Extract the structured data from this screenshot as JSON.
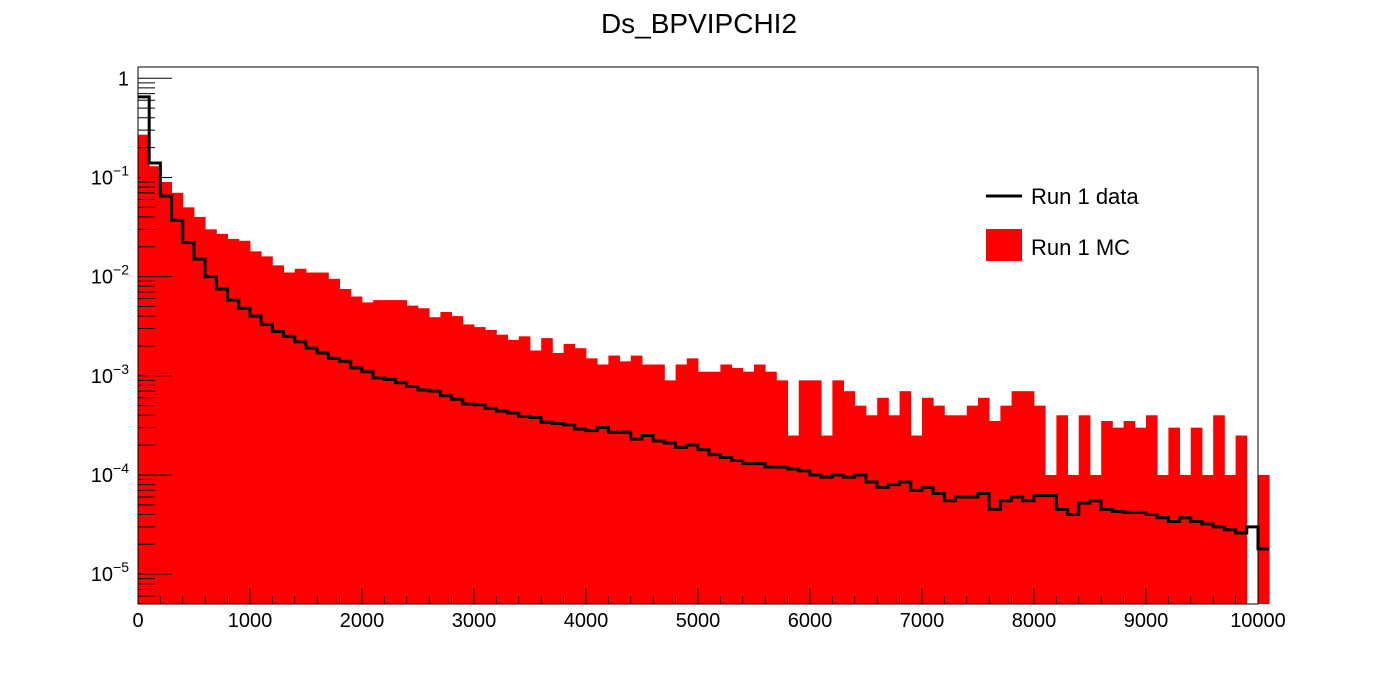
{
  "chart_data": {
    "type": "histogram",
    "title": "Ds_BPVIPCHI2",
    "xlabel": "",
    "ylabel": "",
    "x_range": [
      0,
      10000
    ],
    "bin_width": 100,
    "y_scale": "log",
    "y_range": [
      5e-06,
      1.3
    ],
    "x_ticks": [
      "0",
      "1000",
      "2000",
      "3000",
      "4000",
      "5000",
      "6000",
      "7000",
      "8000",
      "9000",
      "10000"
    ],
    "y_ticks": [
      {
        "base": "1",
        "exp": ""
      },
      {
        "base": "10",
        "exp": "−1"
      },
      {
        "base": "10",
        "exp": "−2"
      },
      {
        "base": "10",
        "exp": "−3"
      },
      {
        "base": "10",
        "exp": "−4"
      },
      {
        "base": "10",
        "exp": "−5"
      }
    ],
    "legend_position": "top-right",
    "series": [
      {
        "name": "Run 1 MC",
        "style": "filled",
        "color": "#ff0000",
        "values": [
          0.27,
          0.13,
          0.09,
          0.07,
          0.05,
          0.04,
          0.03,
          0.027,
          0.024,
          0.023,
          0.018,
          0.016,
          0.013,
          0.011,
          0.012,
          0.011,
          0.011,
          0.0095,
          0.0075,
          0.0063,
          0.0055,
          0.0058,
          0.0058,
          0.0058,
          0.0051,
          0.0048,
          0.0039,
          0.0044,
          0.004,
          0.0033,
          0.0031,
          0.0029,
          0.0026,
          0.0023,
          0.0025,
          0.0018,
          0.0024,
          0.0017,
          0.0021,
          0.0019,
          0.0015,
          0.0013,
          0.0016,
          0.0014,
          0.0016,
          0.0013,
          0.0013,
          0.0009,
          0.0013,
          0.0015,
          0.0011,
          0.0011,
          0.0013,
          0.0012,
          0.0011,
          0.0013,
          0.0011,
          0.0009,
          0.00025,
          0.0009,
          0.0009,
          0.00025,
          0.0009,
          0.0007,
          0.0005,
          0.0004,
          0.0006,
          0.0004,
          0.0007,
          0.00025,
          0.0006,
          0.0005,
          0.0004,
          0.0004,
          0.0005,
          0.0006,
          0.00035,
          0.0005,
          0.0007,
          0.0007,
          0.0005,
          0.0001,
          0.0004,
          0.0001,
          0.0004,
          0.0001,
          0.00035,
          0.0003,
          0.00035,
          0.0003,
          0.0004,
          0.0001,
          0.0003,
          0.0001,
          0.0003,
          0.0001,
          0.0004,
          0.0001,
          0.00025,
          0,
          0.0001
        ]
      },
      {
        "name": "Run 1 data",
        "style": "step",
        "color": "#000000",
        "values": [
          0.65,
          0.14,
          0.065,
          0.037,
          0.022,
          0.015,
          0.01,
          0.0075,
          0.0058,
          0.0048,
          0.004,
          0.0033,
          0.0028,
          0.0025,
          0.0022,
          0.0019,
          0.0017,
          0.0015,
          0.0014,
          0.0012,
          0.0011,
          0.00095,
          0.00092,
          0.00085,
          0.00078,
          0.00072,
          0.0007,
          0.00063,
          0.00058,
          0.00052,
          0.00051,
          0.00047,
          0.00044,
          0.00042,
          0.00039,
          0.00038,
          0.00034,
          0.00033,
          0.00032,
          0.00029,
          0.00028,
          0.0003,
          0.00027,
          0.00027,
          0.00023,
          0.00025,
          0.00022,
          0.00021,
          0.00019,
          0.0002,
          0.00018,
          0.00016,
          0.00015,
          0.00014,
          0.00013,
          0.00013,
          0.00012,
          0.00012,
          0.000115,
          0.00011,
          0.0001,
          9.5e-05,
          0.0001,
          9.5e-05,
          0.0001,
          8.5e-05,
          7.5e-05,
          8e-05,
          8.5e-05,
          7e-05,
          7.5e-05,
          6.5e-05,
          5.5e-05,
          6e-05,
          6e-05,
          6.5e-05,
          4.5e-05,
          5.5e-05,
          6e-05,
          5.5e-05,
          6.2e-05,
          6.2e-05,
          4.5e-05,
          4e-05,
          5.2e-05,
          5.5e-05,
          4.5e-05,
          4.3e-05,
          4.2e-05,
          4.2e-05,
          4e-05,
          3.7e-05,
          3.4e-05,
          3.7e-05,
          3.4e-05,
          3.2e-05,
          3e-05,
          2.8e-05,
          2.6e-05,
          3e-05,
          1.8e-05
        ]
      }
    ]
  }
}
